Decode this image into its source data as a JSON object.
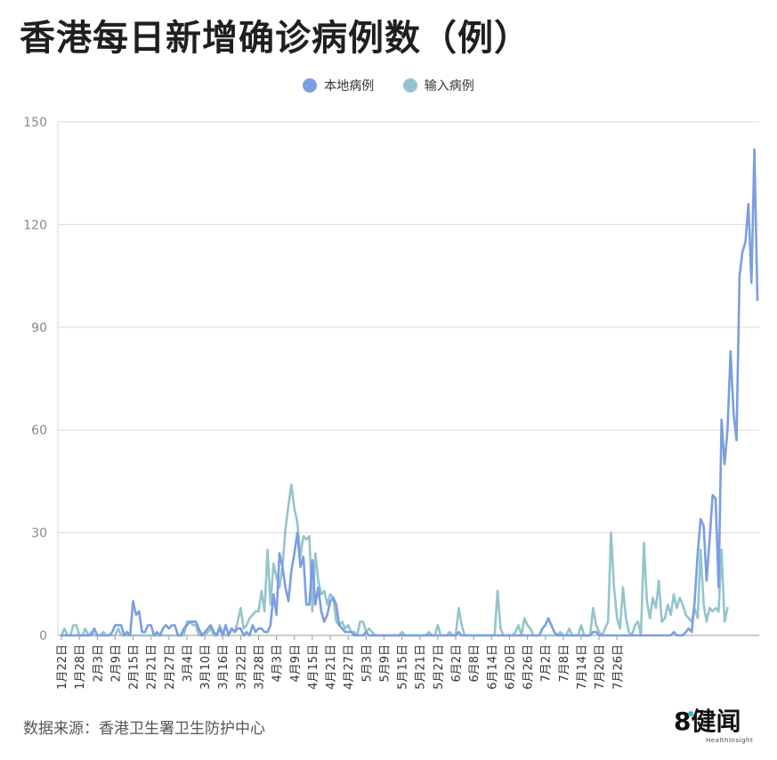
{
  "title": "香港每日新增确诊病例数（例）",
  "source": "数据来源：香港卫生署卫生防护中心",
  "logo": {
    "main": "8健闻",
    "sub": "HealthInsight"
  },
  "colors": {
    "local": "#7b9ee0",
    "imported": "#94c4cc",
    "grid": "#d9d9d9",
    "axis": "#9a9a9a"
  },
  "chart_data": {
    "type": "line",
    "title": "香港每日新增确诊病例数（例）",
    "ylim": [
      0,
      150
    ],
    "yticks": [
      0,
      30,
      60,
      90,
      120,
      150
    ],
    "grid": true,
    "legend_position": "top-center",
    "xtick_labels": [
      "1月22日",
      "1月28日",
      "2月3日",
      "2月9日",
      "2月15日",
      "2月21日",
      "2月27日",
      "3月4日",
      "3月10日",
      "3月16日",
      "3月22日",
      "3月28日",
      "4月3日",
      "4月9日",
      "4月15日",
      "4月21日",
      "4月27日",
      "5月3日",
      "5月9日",
      "5月15日",
      "5月21日",
      "5月27日",
      "6月2日",
      "6月8日",
      "6月14日",
      "6月20日",
      "6月26日",
      "7月2日",
      "7月8日",
      "7月14日",
      "7月20日",
      "7月26日"
    ],
    "x_start": "1月22日",
    "x_end": "7月28日",
    "series": [
      {
        "name": "本地病例",
        "values": [
          0,
          0,
          0,
          0,
          0,
          0,
          0,
          0,
          0,
          0,
          0,
          2,
          0,
          0,
          0,
          0,
          0,
          1,
          3,
          3,
          3,
          0,
          1,
          0,
          10,
          6,
          7,
          1,
          1,
          3,
          3,
          0,
          1,
          0,
          2,
          3,
          2,
          3,
          3,
          0,
          0,
          2,
          3,
          4,
          4,
          4,
          2,
          0,
          1,
          2,
          3,
          1,
          0,
          2,
          0,
          3,
          0,
          2,
          1,
          2,
          2,
          0,
          1,
          0,
          3,
          1,
          2,
          2,
          1,
          1,
          3,
          12,
          6,
          24,
          20,
          14,
          10,
          19,
          24,
          30,
          20,
          23,
          9,
          9,
          22,
          9,
          14,
          7,
          4,
          6,
          10,
          11,
          9,
          3,
          2,
          1,
          1,
          1,
          0,
          0,
          0,
          0,
          1,
          0,
          0,
          0,
          0,
          0,
          0,
          0,
          0,
          0,
          0,
          0,
          0,
          0,
          0,
          0,
          0,
          0,
          0,
          0,
          0,
          0,
          0,
          0,
          0,
          0,
          0,
          0,
          0,
          0,
          0,
          1,
          0,
          0,
          0,
          0,
          0,
          0,
          0,
          0,
          0,
          0,
          0,
          0,
          0,
          0,
          0,
          0,
          0,
          0,
          0,
          0,
          0,
          0,
          0,
          0,
          0,
          0,
          0,
          2,
          3,
          5,
          3,
          1,
          0,
          0,
          0,
          0,
          0,
          0,
          0,
          0,
          0,
          0,
          0,
          0,
          1,
          1,
          0,
          0,
          0,
          0,
          0,
          0,
          0,
          0,
          0,
          0,
          0,
          0,
          0,
          0,
          0,
          0,
          0,
          0,
          0,
          0,
          0,
          0,
          0,
          0,
          0,
          1,
          0,
          0,
          0,
          1,
          2,
          1,
          10,
          24,
          34,
          32,
          16,
          28,
          41,
          40,
          14,
          63,
          50,
          60,
          83,
          65,
          57,
          105,
          112,
          115,
          126,
          103,
          142,
          98
        ]
      },
      {
        "name": "输入病例",
        "values": [
          0,
          2,
          0,
          0,
          3,
          3,
          0,
          0,
          2,
          0,
          1,
          0,
          0,
          0,
          1,
          0,
          0,
          0,
          0,
          2,
          0,
          0,
          0,
          0,
          0,
          0,
          0,
          0,
          0,
          0,
          0,
          0,
          0,
          0,
          0,
          0,
          0,
          0,
          0,
          0,
          0,
          0,
          4,
          4,
          3,
          3,
          0,
          0,
          0,
          1,
          2,
          0,
          0,
          3,
          1,
          0,
          0,
          2,
          1,
          4,
          8,
          2,
          3,
          5,
          6,
          7,
          7,
          13,
          7,
          25,
          9,
          21,
          17,
          14,
          20,
          31,
          38,
          44,
          37,
          33,
          23,
          29,
          28,
          29,
          7,
          24,
          16,
          12,
          13,
          9,
          12,
          11,
          4,
          3,
          4,
          2,
          3,
          1,
          1,
          0,
          4,
          4,
          1,
          2,
          1,
          0,
          0,
          0,
          0,
          0,
          0,
          0,
          0,
          0,
          1,
          0,
          0,
          0,
          0,
          0,
          0,
          0,
          0,
          1,
          0,
          0,
          3,
          0,
          0,
          0,
          1,
          0,
          0,
          8,
          3,
          0,
          0,
          0,
          0,
          0,
          0,
          0,
          0,
          0,
          0,
          0,
          13,
          2,
          0,
          0,
          0,
          0,
          1,
          3,
          0,
          5,
          3,
          2,
          0,
          0,
          0,
          0,
          0,
          0,
          0,
          0,
          0,
          1,
          0,
          0,
          2,
          0,
          0,
          0,
          3,
          0,
          0,
          0,
          8,
          3,
          1,
          0,
          2,
          4,
          30,
          14,
          5,
          2,
          14,
          5,
          1,
          0,
          3,
          4,
          0,
          27,
          10,
          5,
          11,
          8,
          16,
          4,
          5,
          9,
          6,
          12,
          8,
          11,
          9,
          6,
          5,
          4,
          8,
          5,
          25,
          9,
          4,
          8,
          7,
          8,
          7,
          25,
          4,
          8
        ]
      }
    ]
  }
}
